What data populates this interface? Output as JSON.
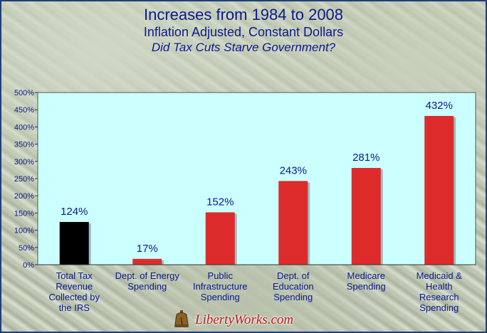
{
  "title": "Increases from 1984 to 2008",
  "subtitle": "Inflation Adjusted, Constant Dollars",
  "subtitle2": "Did Tax Cuts Starve Government?",
  "logo_text": "LibertyWorks.com",
  "colors": {
    "plot_bg": "#ccffff",
    "bar_red": "#dd2b2b",
    "bar_black": "#000000",
    "label_blue": "#0a1a8c"
  },
  "chart_data": {
    "type": "bar",
    "categories": [
      "Total Tax Revenue Collected by the IRS",
      "Dept. of Energy Spending",
      "Public Infrastructure Spending",
      "Dept. of Education Spending",
      "Medicare Spending",
      "Medicaid & Health Research Spending"
    ],
    "category_lines": [
      [
        "Total Tax",
        "Revenue",
        "Collected by",
        "the IRS"
      ],
      [
        "Dept. of Energy",
        "Spending"
      ],
      [
        "Public",
        "Infrastructure",
        "Spending"
      ],
      [
        "Dept. of",
        "Education",
        "Spending"
      ],
      [
        "Medicare",
        "Spending"
      ],
      [
        "Medicaid &",
        "Health",
        "Research",
        "Spending"
      ]
    ],
    "values": [
      124,
      17,
      152,
      243,
      281,
      432
    ],
    "value_labels": [
      "124%",
      "17%",
      "152%",
      "243%",
      "281%",
      "432%"
    ],
    "bar_colors": [
      "#000000",
      "#dd2b2b",
      "#dd2b2b",
      "#dd2b2b",
      "#dd2b2b",
      "#dd2b2b"
    ],
    "ylim": [
      0,
      500
    ],
    "yticks": [
      0,
      50,
      100,
      150,
      200,
      250,
      300,
      350,
      400,
      450,
      500
    ],
    "ytick_labels": [
      "0%",
      "50%",
      "100%",
      "150%",
      "200%",
      "250%",
      "300%",
      "350%",
      "400%",
      "450%",
      "500%"
    ],
    "grid": false,
    "legend": "none"
  }
}
